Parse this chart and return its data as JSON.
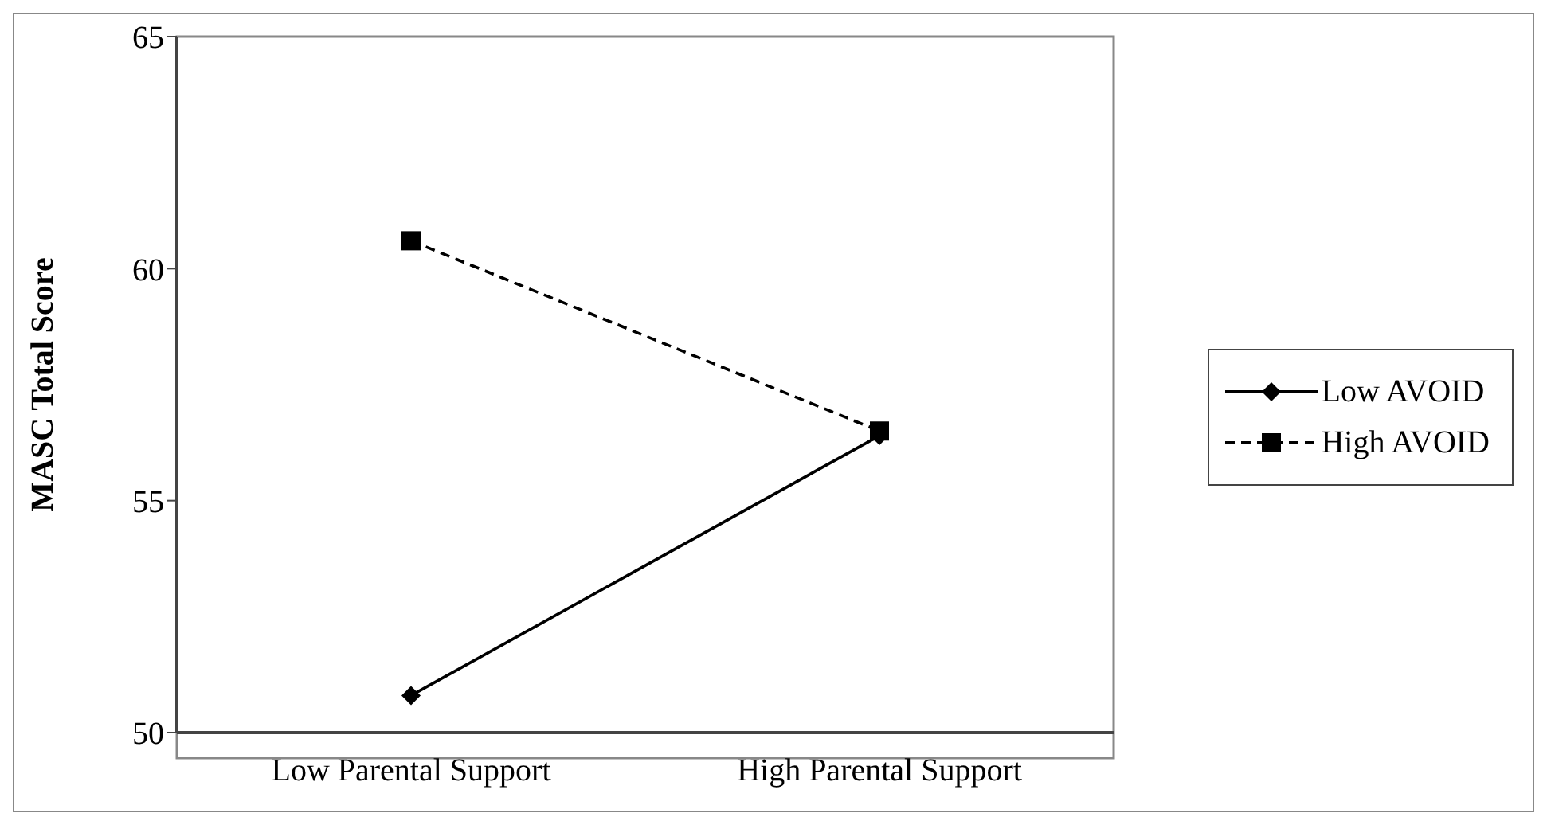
{
  "chart_data": {
    "type": "line",
    "ylabel": "MASC Total Score",
    "categories": [
      "Low Parental Support",
      "High Parental Support"
    ],
    "series": [
      {
        "name": "Low AVOID",
        "color": "#000000",
        "values": [
          50.8,
          56.4
        ],
        "marker": "diamond",
        "line_style": "solid"
      },
      {
        "name": "High AVOID",
        "color": "#000000",
        "values": [
          60.6,
          56.5
        ],
        "marker": "square",
        "line_style": "dashed"
      }
    ],
    "ylim": [
      50,
      65
    ],
    "yticks": [
      50,
      55,
      60,
      65
    ],
    "grid": false,
    "legend": "right"
  }
}
